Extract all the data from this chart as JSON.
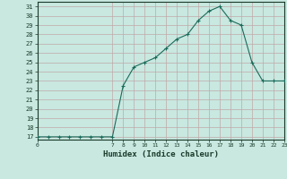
{
  "xlabel": "Humidex (Indice chaleur)",
  "x": [
    0,
    1,
    2,
    3,
    4,
    5,
    6,
    7,
    8,
    9,
    10,
    11,
    12,
    13,
    14,
    15,
    16,
    17,
    18,
    19,
    20,
    21,
    22,
    23
  ],
  "y": [
    17,
    17,
    17,
    17,
    17,
    17,
    17,
    17,
    22.5,
    24.5,
    25,
    25.5,
    26.5,
    27.5,
    28,
    29.5,
    30.5,
    31,
    29.5,
    29,
    25,
    23,
    23,
    23
  ],
  "line_color": "#1a6b5a",
  "marker": "+",
  "bg_color": "#c8e8e0",
  "grid_color": "#c0a8a8",
  "text_color": "#1a3a2a",
  "ylim_min": 17,
  "ylim_max": 31.5,
  "yticks": [
    17,
    18,
    19,
    20,
    21,
    22,
    23,
    24,
    25,
    26,
    27,
    28,
    29,
    30,
    31
  ],
  "xlim_min": 0,
  "xlim_max": 23,
  "xticks": [
    0,
    7,
    8,
    9,
    10,
    11,
    12,
    13,
    14,
    15,
    16,
    17,
    18,
    19,
    20,
    21,
    22,
    23
  ]
}
